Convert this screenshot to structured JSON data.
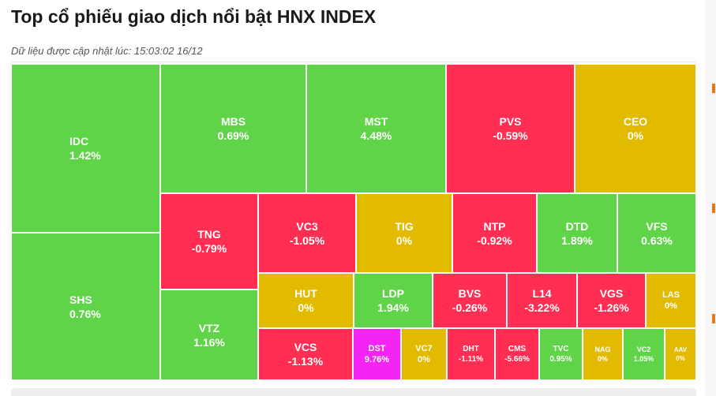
{
  "header": {
    "title": "Top cổ phiếu giao dịch nổi bật HNX INDEX",
    "updated_label": "Dữ liệu được cập nhật lúc: 15:03:02 16/12"
  },
  "colors": {
    "up": "#5fd448",
    "down": "#ff2e52",
    "flat": "#e2ba00",
    "ceiling": "#f424f4"
  },
  "chart_data": {
    "type": "treemap",
    "value_unit": "%",
    "items": [
      {
        "ticker": "IDC",
        "change": 1.42,
        "label": "1.42%",
        "status": "up"
      },
      {
        "ticker": "SHS",
        "change": 0.76,
        "label": "0.76%",
        "status": "up"
      },
      {
        "ticker": "MBS",
        "change": 0.69,
        "label": "0.69%",
        "status": "up"
      },
      {
        "ticker": "MST",
        "change": 4.48,
        "label": "4.48%",
        "status": "up"
      },
      {
        "ticker": "PVS",
        "change": -0.59,
        "label": "-0.59%",
        "status": "down"
      },
      {
        "ticker": "CEO",
        "change": 0,
        "label": "0%",
        "status": "flat"
      },
      {
        "ticker": "TNG",
        "change": -0.79,
        "label": "-0.79%",
        "status": "down"
      },
      {
        "ticker": "VTZ",
        "change": 1.16,
        "label": "1.16%",
        "status": "up"
      },
      {
        "ticker": "VC3",
        "change": -1.05,
        "label": "-1.05%",
        "status": "down"
      },
      {
        "ticker": "TIG",
        "change": 0,
        "label": "0%",
        "status": "flat"
      },
      {
        "ticker": "NTP",
        "change": -0.92,
        "label": "-0.92%",
        "status": "down"
      },
      {
        "ticker": "DTD",
        "change": 1.89,
        "label": "1.89%",
        "status": "up"
      },
      {
        "ticker": "VFS",
        "change": 0.63,
        "label": "0.63%",
        "status": "up"
      },
      {
        "ticker": "HUT",
        "change": 0,
        "label": "0%",
        "status": "flat"
      },
      {
        "ticker": "LDP",
        "change": 1.94,
        "label": "1.94%",
        "status": "up"
      },
      {
        "ticker": "BVS",
        "change": -0.26,
        "label": "-0.26%",
        "status": "down"
      },
      {
        "ticker": "L14",
        "change": -3.22,
        "label": "-3.22%",
        "status": "down"
      },
      {
        "ticker": "VGS",
        "change": -1.26,
        "label": "-1.26%",
        "status": "down"
      },
      {
        "ticker": "LAS",
        "change": 0,
        "label": "0%",
        "status": "flat"
      },
      {
        "ticker": "VCS",
        "change": -1.13,
        "label": "-1.13%",
        "status": "down"
      },
      {
        "ticker": "DST",
        "change": 9.76,
        "label": "9.76%",
        "status": "ceiling"
      },
      {
        "ticker": "VC7",
        "change": 0,
        "label": "0%",
        "status": "flat"
      },
      {
        "ticker": "DHT",
        "change": -1.11,
        "label": "-1.11%",
        "status": "down"
      },
      {
        "ticker": "CMS",
        "change": -5.66,
        "label": "-5.66%",
        "status": "down"
      },
      {
        "ticker": "TVC",
        "change": 0.95,
        "label": "0.95%",
        "status": "up"
      },
      {
        "ticker": "NAG",
        "change": 0,
        "label": "0%",
        "status": "flat"
      },
      {
        "ticker": "VC2",
        "change": 1.05,
        "label": "1.05%",
        "status": "up"
      },
      {
        "ticker": "AAV",
        "change": 0,
        "label": "0%",
        "status": "flat"
      }
    ]
  }
}
